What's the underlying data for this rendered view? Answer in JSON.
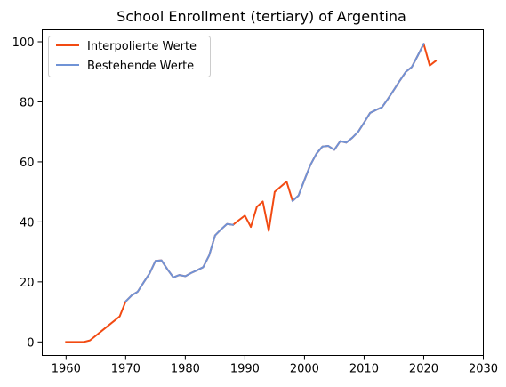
{
  "chart_data": {
    "type": "line",
    "title": "School Enrollment (tertiary) of Argentina",
    "xlabel": "",
    "ylabel": "",
    "xlim": [
      1956,
      2030
    ],
    "ylim": [
      -4.5,
      104
    ],
    "x_ticks": [
      1960,
      1970,
      1980,
      1990,
      2000,
      2010,
      2020,
      2030
    ],
    "y_ticks": [
      0,
      20,
      40,
      60,
      80,
      100
    ],
    "grid": false,
    "legend_position": "top-left",
    "series": [
      {
        "name": "Interpolierte Werte",
        "color": "#f24a12",
        "x": [
          1960,
          1961,
          1962,
          1963,
          1964,
          1965,
          1966,
          1967,
          1968,
          1969,
          1970,
          1971,
          1972,
          1973,
          1974,
          1975,
          1976,
          1977,
          1978,
          1979,
          1980,
          1981,
          1982,
          1983,
          1984,
          1985,
          1986,
          1987,
          1988,
          1989,
          1990,
          1991,
          1992,
          1993,
          1994,
          1995,
          1996,
          1997,
          1998,
          1999,
          2000,
          2001,
          2002,
          2003,
          2004,
          2005,
          2006,
          2007,
          2008,
          2009,
          2010,
          2011,
          2012,
          2013,
          2014,
          2015,
          2016,
          2017,
          2018,
          2019,
          2020,
          2021,
          2022
        ],
        "values": [
          0,
          0,
          0,
          0,
          0.5,
          2.1,
          3.7,
          5.3,
          6.9,
          8.5,
          13.5,
          15.5,
          16.7,
          19.8,
          22.8,
          27.0,
          27.2,
          24.2,
          21.5,
          22.3,
          21.9,
          23.0,
          23.9,
          24.9,
          28.8,
          35.5,
          37.5,
          39.3,
          39.0,
          40.6,
          42.1,
          38.3,
          45.0,
          46.8,
          37.0,
          50.0,
          51.7,
          53.4,
          47.0,
          48.8,
          54.0,
          59.0,
          62.7,
          65.1,
          65.3,
          64.0,
          66.9,
          66.4,
          68.0,
          70.0,
          73.1,
          76.3,
          77.3,
          78.2,
          81.0,
          84.0,
          87.1,
          90.0,
          91.6,
          95.4,
          99.3,
          92.1,
          93.6
        ]
      },
      {
        "name": "Bestehende Werte",
        "color": "#7093d6",
        "segments": [
          {
            "x": [
              1970,
              1971,
              1972,
              1973,
              1974,
              1975,
              1976,
              1977,
              1978,
              1979,
              1980,
              1981,
              1982,
              1983,
              1984,
              1985,
              1986,
              1987,
              1988
            ],
            "values": [
              13.5,
              15.5,
              16.7,
              19.8,
              22.8,
              27.0,
              27.2,
              24.2,
              21.5,
              22.3,
              21.9,
              23.0,
              23.9,
              24.9,
              28.8,
              35.5,
              37.5,
              39.3,
              39.0
            ]
          },
          {
            "x": [
              1998,
              1999,
              2000,
              2001,
              2002,
              2003,
              2004,
              2005,
              2006,
              2007,
              2008,
              2009,
              2010,
              2011,
              2012,
              2013,
              2014,
              2015,
              2016,
              2017,
              2018,
              2019,
              2020
            ],
            "values": [
              47.0,
              48.8,
              54.0,
              59.0,
              62.7,
              65.1,
              65.3,
              64.0,
              66.9,
              66.4,
              68.0,
              70.0,
              73.1,
              76.3,
              77.3,
              78.2,
              81.0,
              84.0,
              87.1,
              90.0,
              91.6,
              95.4,
              99.3
            ]
          }
        ]
      }
    ]
  }
}
